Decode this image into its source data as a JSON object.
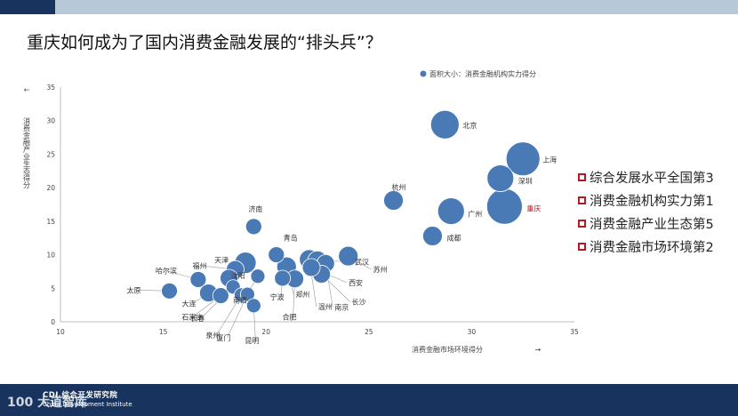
{
  "header": {
    "title": "重庆如何成为了国内消费金融发展的“排头兵”？"
  },
  "legend_label": "面积大小：消费金融机构实力得分",
  "side_list": [
    "综合发展水平全国第3",
    "消费金融机构实力第1",
    "消费金融产业生态第5",
    "消费金融市场环境第2"
  ],
  "footer": {
    "logo_line1": "CDI 综合开发研究院",
    "logo_line2": "China Development Institute",
    "watermark": "100 大道智库"
  },
  "colors": {
    "bubble": "#4a7ab5",
    "highlight": "#b31b20",
    "topbar": "#17335e",
    "topbar_light": "#b7c8d8"
  },
  "chart_data": {
    "type": "scatter",
    "xlabel": "消费金融市场环境得分",
    "ylabel": "消费金融产业生态得分",
    "xlim": [
      10,
      35
    ],
    "ylim": [
      0,
      35
    ],
    "xticks": [
      10,
      15,
      20,
      25,
      30,
      35
    ],
    "yticks": [
      0,
      5,
      10,
      15,
      20,
      25,
      30,
      35
    ],
    "grid": false,
    "legend_position": "top-right",
    "highlight": "重庆",
    "points": [
      {
        "name": "北京",
        "x": 28.7,
        "y": 29.4,
        "size": 16
      },
      {
        "name": "上海",
        "x": 32.5,
        "y": 24.3,
        "size": 19
      },
      {
        "name": "深圳",
        "x": 31.4,
        "y": 21.4,
        "size": 15
      },
      {
        "name": "重庆",
        "x": 31.6,
        "y": 17.2,
        "size": 20
      },
      {
        "name": "广州",
        "x": 29.0,
        "y": 16.5,
        "size": 15
      },
      {
        "name": "杭州",
        "x": 26.2,
        "y": 18.1,
        "size": 11
      },
      {
        "name": "成都",
        "x": 28.1,
        "y": 12.8,
        "size": 11
      },
      {
        "name": "苏州",
        "x": 24.0,
        "y": 9.8,
        "size": 11
      },
      {
        "name": "济南",
        "x": 19.4,
        "y": 14.2,
        "size": 9
      },
      {
        "name": "青岛",
        "x": 20.5,
        "y": 10.0,
        "size": 9
      },
      {
        "name": "天津",
        "x": 19.0,
        "y": 8.8,
        "size": 12
      },
      {
        "name": "福州",
        "x": 18.5,
        "y": 7.8,
        "size": 10
      },
      {
        "name": "哈尔滨",
        "x": 16.7,
        "y": 6.3,
        "size": 9
      },
      {
        "name": "沈阳",
        "x": 18.2,
        "y": 6.5,
        "size": 10
      },
      {
        "name": "太原",
        "x": 15.3,
        "y": 4.6,
        "size": 9
      },
      {
        "name": "大连",
        "x": 17.2,
        "y": 4.3,
        "size": 10
      },
      {
        "name": "石家庄",
        "x": 17.8,
        "y": 3.9,
        "size": 9
      },
      {
        "name": "长春",
        "x": 18.4,
        "y": 5.2,
        "size": 8
      },
      {
        "name": "泉州",
        "x": 18.8,
        "y": 4.0,
        "size": 8
      },
      {
        "name": "厦门",
        "x": 19.1,
        "y": 4.1,
        "size": 8
      },
      {
        "name": "昆明",
        "x": 19.4,
        "y": 2.4,
        "size": 8
      },
      {
        "name": "南昌",
        "x": 19.6,
        "y": 6.8,
        "size": 8
      },
      {
        "name": "宁波",
        "x": 20.8,
        "y": 6.5,
        "size": 9
      },
      {
        "name": "合肥",
        "x": 21.4,
        "y": 6.4,
        "size": 10
      },
      {
        "name": "郑州",
        "x": 21.0,
        "y": 8.2,
        "size": 11
      },
      {
        "name": "温州",
        "x": 22.1,
        "y": 9.3,
        "size": 11
      },
      {
        "name": "南京",
        "x": 22.9,
        "y": 8.7,
        "size": 10
      },
      {
        "name": "长沙",
        "x": 22.7,
        "y": 7.1,
        "size": 10
      },
      {
        "name": "西安",
        "x": 22.2,
        "y": 8.1,
        "size": 10
      },
      {
        "name": "武汉",
        "x": 22.5,
        "y": 9.1,
        "size": 11
      }
    ],
    "label_order": [
      "北京",
      "上海",
      "深圳",
      "重庆",
      "广州",
      "杭州",
      "成都",
      "苏州",
      "济南",
      "青岛",
      "天津",
      "福州",
      "哈尔滨",
      "沈阳",
      "太原",
      "大连",
      "石家庄",
      "长春",
      "泉州",
      "厦门",
      "昆明",
      "南昌",
      "宁波",
      "合肥",
      "郑州",
      "温州",
      "南京",
      "长沙",
      "西安",
      "武汉"
    ]
  }
}
